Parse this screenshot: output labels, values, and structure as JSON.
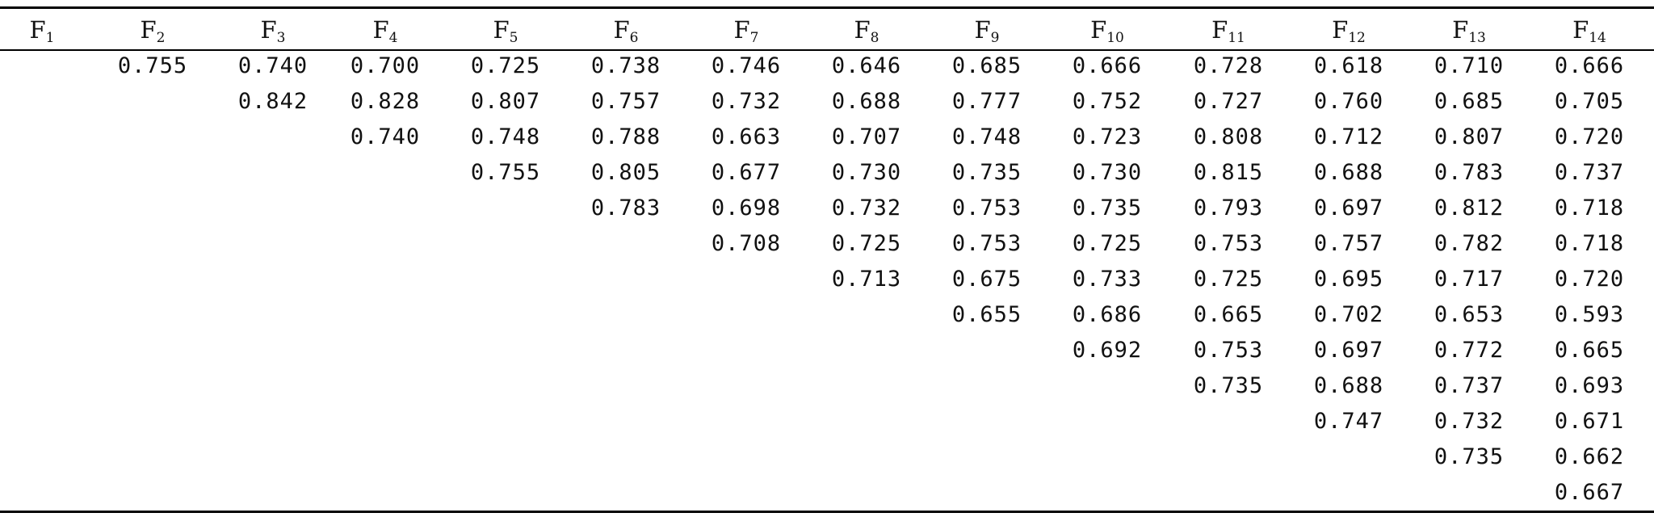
{
  "table": {
    "headers": [
      {
        "base": "F",
        "sub": "1"
      },
      {
        "base": "F",
        "sub": "2"
      },
      {
        "base": "F",
        "sub": "3"
      },
      {
        "base": "F",
        "sub": "4"
      },
      {
        "base": "F",
        "sub": "5"
      },
      {
        "base": "F",
        "sub": "6"
      },
      {
        "base": "F",
        "sub": "7"
      },
      {
        "base": "F",
        "sub": "8"
      },
      {
        "base": "F",
        "sub": "9"
      },
      {
        "base": "F",
        "sub": "10"
      },
      {
        "base": "F",
        "sub": "11"
      },
      {
        "base": "F",
        "sub": "12"
      },
      {
        "base": "F",
        "sub": "13"
      },
      {
        "base": "F",
        "sub": "14"
      }
    ],
    "rows": [
      [
        "",
        "0.755",
        "0.740",
        "0.700",
        "0.725",
        "0.738",
        "0.746",
        "0.646",
        "0.685",
        "0.666",
        "0.728",
        "0.618",
        "0.710",
        "0.666"
      ],
      [
        "",
        "",
        "0.842",
        "0.828",
        "0.807",
        "0.757",
        "0.732",
        "0.688",
        "0.777",
        "0.752",
        "0.727",
        "0.760",
        "0.685",
        "0.705"
      ],
      [
        "",
        "",
        "",
        "0.740",
        "0.748",
        "0.788",
        "0.663",
        "0.707",
        "0.748",
        "0.723",
        "0.808",
        "0.712",
        "0.807",
        "0.720"
      ],
      [
        "",
        "",
        "",
        "",
        "0.755",
        "0.805",
        "0.677",
        "0.730",
        "0.735",
        "0.730",
        "0.815",
        "0.688",
        "0.783",
        "0.737"
      ],
      [
        "",
        "",
        "",
        "",
        "",
        "0.783",
        "0.698",
        "0.732",
        "0.753",
        "0.735",
        "0.793",
        "0.697",
        "0.812",
        "0.718"
      ],
      [
        "",
        "",
        "",
        "",
        "",
        "",
        "0.708",
        "0.725",
        "0.753",
        "0.725",
        "0.753",
        "0.757",
        "0.782",
        "0.718"
      ],
      [
        "",
        "",
        "",
        "",
        "",
        "",
        "",
        "0.713",
        "0.675",
        "0.733",
        "0.725",
        "0.695",
        "0.717",
        "0.720"
      ],
      [
        "",
        "",
        "",
        "",
        "",
        "",
        "",
        "",
        "0.655",
        "0.686",
        "0.665",
        "0.702",
        "0.653",
        "0.593"
      ],
      [
        "",
        "",
        "",
        "",
        "",
        "",
        "",
        "",
        "",
        "0.692",
        "0.753",
        "0.697",
        "0.772",
        "0.665"
      ],
      [
        "",
        "",
        "",
        "",
        "",
        "",
        "",
        "",
        "",
        "",
        "0.735",
        "0.688",
        "0.737",
        "0.693"
      ],
      [
        "",
        "",
        "",
        "",
        "",
        "",
        "",
        "",
        "",
        "",
        "",
        "0.747",
        "0.732",
        "0.671"
      ],
      [
        "",
        "",
        "",
        "",
        "",
        "",
        "",
        "",
        "",
        "",
        "",
        "",
        "0.735",
        "0.662"
      ],
      [
        "",
        "",
        "",
        "",
        "",
        "",
        "",
        "",
        "",
        "",
        "",
        "",
        "",
        "0.667"
      ]
    ]
  }
}
